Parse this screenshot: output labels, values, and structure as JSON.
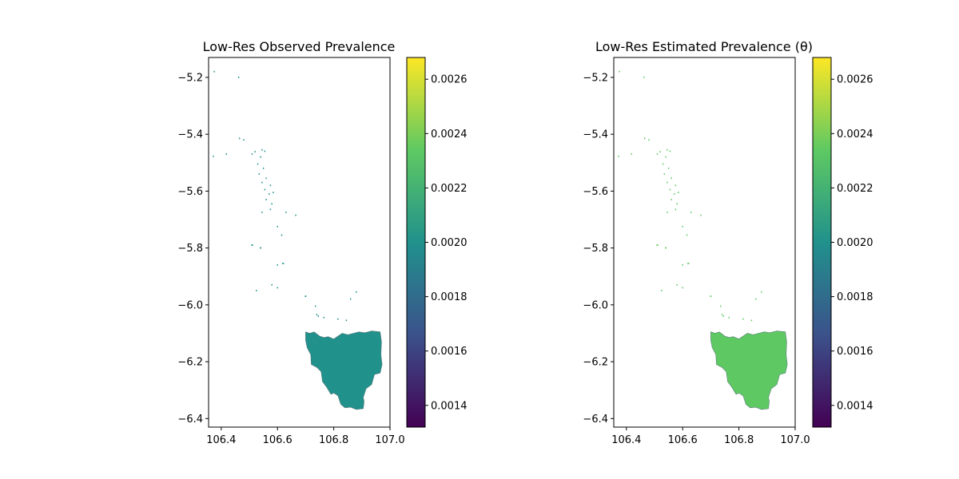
{
  "figure": {
    "background": "#ffffff"
  },
  "colorbar": {
    "colormap": "viridis",
    "stops": [
      "#440154",
      "#3b528b",
      "#21918c",
      "#5ec962",
      "#fde725"
    ],
    "range": [
      0.00132,
      0.00268
    ],
    "ticks": [
      "0.0014",
      "0.0016",
      "0.0018",
      "0.0020",
      "0.0022",
      "0.0024",
      "0.0026"
    ]
  },
  "chart_data": [
    {
      "type": "heatmap",
      "title": "Low-Res Observed Prevalence",
      "xlabel": "",
      "ylabel": "",
      "xlim": [
        106.355,
        107.0
      ],
      "ylim": [
        -6.43,
        -5.13
      ],
      "xticks": [
        "106.4",
        "106.6",
        "106.8",
        "107.0"
      ],
      "yticks": [
        "−5.2",
        "−5.4",
        "−5.6",
        "−5.8",
        "−6.0",
        "−6.2",
        "−6.4"
      ],
      "region_value": 0.002,
      "region_color": "#21918c",
      "colorbar_range": [
        0.00132,
        0.00268
      ]
    },
    {
      "type": "heatmap",
      "title": "Low-Res Estimated Prevalence (θ)",
      "xlabel": "",
      "ylabel": "",
      "xlim": [
        106.355,
        107.0
      ],
      "ylim": [
        -6.43,
        -5.13
      ],
      "xticks": [
        "106.4",
        "106.6",
        "106.8",
        "107.0"
      ],
      "yticks": [
        "−5.2",
        "−5.4",
        "−5.6",
        "−5.8",
        "−6.0",
        "−6.2",
        "−6.4"
      ],
      "region_value": 0.0023,
      "region_color": "#5ec962",
      "colorbar_range": [
        0.00132,
        0.00268
      ]
    }
  ]
}
